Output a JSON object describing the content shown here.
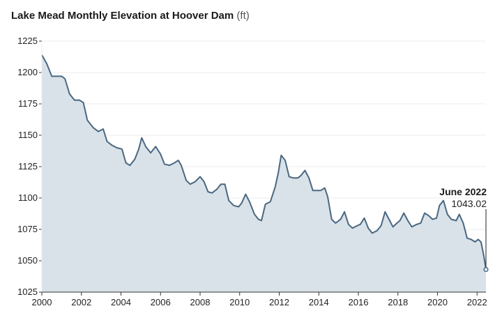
{
  "title": "Lake Mead Monthly Elevation at Hoover Dam",
  "unit": "(ft)",
  "colors": {
    "line": "#4a6781",
    "area": "#d8e2e8",
    "grid": "#ececec",
    "axis": "#333333"
  },
  "chart_data": {
    "type": "area",
    "title": "Lake Mead Monthly Elevation at Hoover Dam",
    "ylabel": "(ft)",
    "xlabel": "",
    "xlim": [
      2000,
      2022.45
    ],
    "ylim": [
      1025,
      1225
    ],
    "grid": true,
    "xticks": [
      2000,
      2002,
      2004,
      2006,
      2008,
      2010,
      2012,
      2014,
      2016,
      2018,
      2020,
      2022
    ],
    "xtick_labels": [
      "2000",
      "2002",
      "2004",
      "2006",
      "2008",
      "2010",
      "2012",
      "2014",
      "2016",
      "2018",
      "2020",
      "2022"
    ],
    "yticks": [
      1025,
      1050,
      1075,
      1100,
      1125,
      1150,
      1175,
      1200,
      1225
    ],
    "ytick_labels": [
      "1025",
      "1050",
      "1075",
      "1100",
      "1125",
      "1150",
      "1175",
      "1200",
      "1225"
    ],
    "series": [
      {
        "x": [
          2000.0,
          2000.25,
          2000.5,
          2000.75,
          2001.0,
          2001.17,
          2001.4,
          2001.65,
          2001.9,
          2002.1,
          2002.3,
          2002.6,
          2002.85,
          2003.1,
          2003.3,
          2003.55,
          2003.8,
          2004.05,
          2004.25,
          2004.45,
          2004.7,
          2004.9,
          2005.05,
          2005.25,
          2005.5,
          2005.75,
          2006.0,
          2006.2,
          2006.45,
          2006.7,
          2006.9,
          2007.05,
          2007.3,
          2007.5,
          2007.75,
          2008.0,
          2008.2,
          2008.4,
          2008.6,
          2008.85,
          2009.05,
          2009.25,
          2009.45,
          2009.7,
          2009.95,
          2010.1,
          2010.3,
          2010.5,
          2010.75,
          2010.95,
          2011.1,
          2011.3,
          2011.55,
          2011.8,
          2011.95,
          2012.1,
          2012.3,
          2012.5,
          2012.7,
          2012.95,
          2013.1,
          2013.3,
          2013.5,
          2013.7,
          2013.95,
          2014.1,
          2014.3,
          2014.45,
          2014.65,
          2014.85,
          2015.1,
          2015.3,
          2015.5,
          2015.7,
          2015.95,
          2016.1,
          2016.3,
          2016.5,
          2016.7,
          2016.95,
          2017.15,
          2017.35,
          2017.55,
          2017.75,
          2017.95,
          2018.1,
          2018.3,
          2018.5,
          2018.7,
          2018.95,
          2019.15,
          2019.35,
          2019.55,
          2019.75,
          2019.95,
          2020.1,
          2020.3,
          2020.5,
          2020.7,
          2020.95,
          2021.1,
          2021.3,
          2021.5,
          2021.7,
          2021.9,
          2022.05,
          2022.2,
          2022.35,
          2022.45
        ],
        "values": [
          1214,
          1207,
          1197,
          1197,
          1197,
          1195,
          1183,
          1178,
          1178,
          1176,
          1162,
          1156,
          1153,
          1155,
          1145,
          1142,
          1140,
          1139,
          1128,
          1126,
          1131,
          1139,
          1148,
          1141,
          1136,
          1141,
          1135,
          1127,
          1126,
          1128,
          1130,
          1126,
          1114,
          1111,
          1113,
          1117,
          1113,
          1105,
          1104,
          1107,
          1111,
          1111,
          1098,
          1094,
          1093,
          1096,
          1103,
          1097,
          1087,
          1083,
          1082,
          1095,
          1097,
          1109,
          1120,
          1134,
          1130,
          1117,
          1116,
          1116,
          1118,
          1122,
          1116,
          1106,
          1106,
          1106,
          1108,
          1101,
          1083,
          1080,
          1083,
          1089,
          1079,
          1076,
          1078,
          1079,
          1084,
          1076,
          1072,
          1074,
          1078,
          1089,
          1083,
          1077,
          1080,
          1082,
          1088,
          1082,
          1077,
          1079,
          1080,
          1088,
          1086,
          1083,
          1084,
          1094,
          1098,
          1087,
          1083,
          1082,
          1087,
          1080,
          1068,
          1067,
          1065,
          1067,
          1065,
          1053,
          1043.02
        ]
      }
    ],
    "annotation": {
      "label": "June 2022",
      "value_text": "1043.02",
      "x": 2022.45,
      "y": 1043.02
    }
  }
}
